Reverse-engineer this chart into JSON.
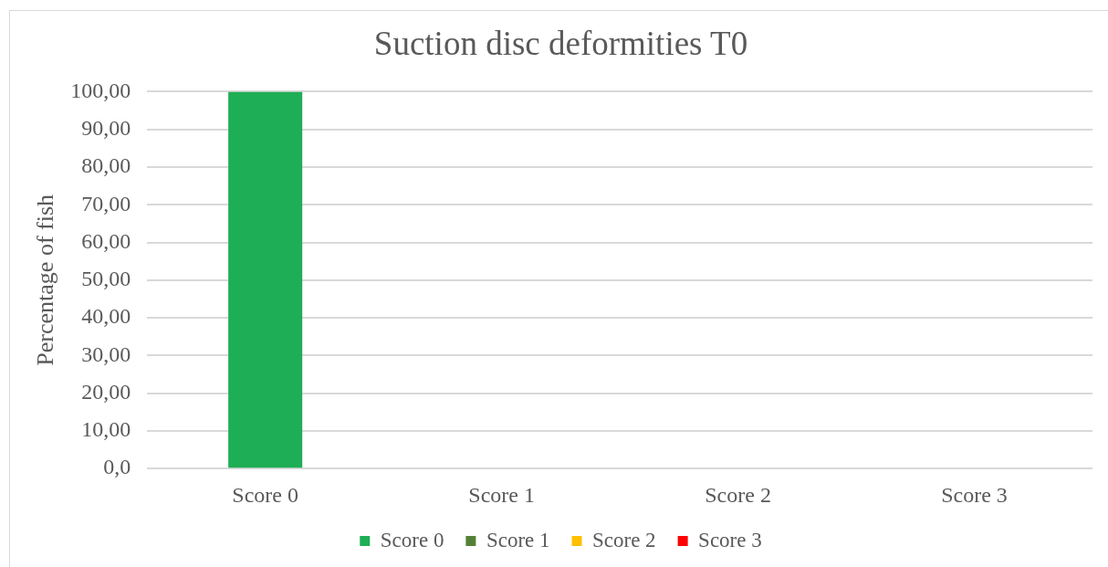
{
  "chart_data": {
    "type": "bar",
    "title": "Suction disc deformities T0",
    "ylabel": "Percentage of fish",
    "categories": [
      "Score 0",
      "Score 1",
      "Score 2",
      "Score 3"
    ],
    "series": [
      {
        "name": "Score 0",
        "color": "#1eae55",
        "values": [
          100,
          null,
          null,
          null
        ]
      },
      {
        "name": "Score 1",
        "color": "#548235",
        "values": [
          null,
          0,
          null,
          null
        ]
      },
      {
        "name": "Score 2",
        "color": "#ffc000",
        "values": [
          null,
          null,
          0,
          null
        ]
      },
      {
        "name": "Score 3",
        "color": "#ff0000",
        "values": [
          null,
          null,
          null,
          0
        ]
      }
    ],
    "ylim": [
      0,
      100
    ],
    "yticks": [
      {
        "value": 0,
        "label": "0,0"
      },
      {
        "value": 10,
        "label": "10,00"
      },
      {
        "value": 20,
        "label": "20,00"
      },
      {
        "value": 30,
        "label": "30,00"
      },
      {
        "value": 40,
        "label": "40,00"
      },
      {
        "value": 50,
        "label": "50,00"
      },
      {
        "value": 60,
        "label": "60,00"
      },
      {
        "value": 70,
        "label": "70,00"
      },
      {
        "value": 80,
        "label": "80,00"
      },
      {
        "value": 90,
        "label": "90,00"
      },
      {
        "value": 100,
        "label": "100,00"
      }
    ],
    "grid": "y",
    "legend": "bottom"
  }
}
